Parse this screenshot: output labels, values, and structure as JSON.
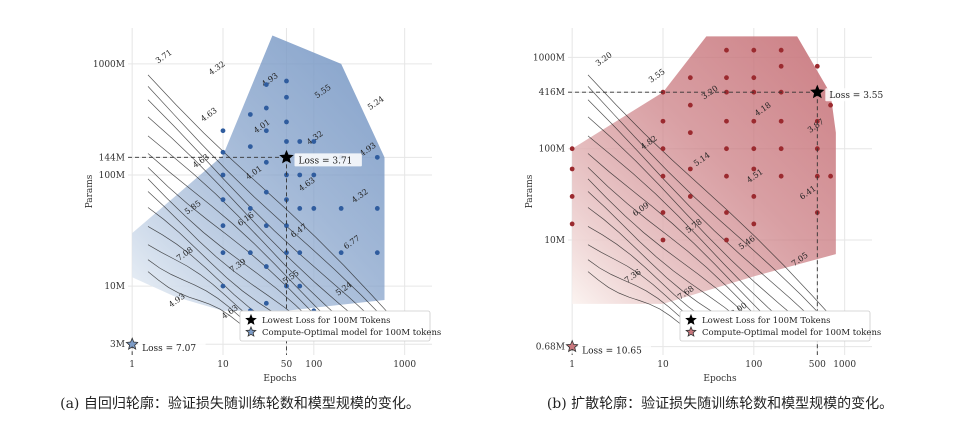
{
  "chart_data": [
    {
      "type": "contour",
      "caption": "(a) 自回归轮廓：验证损失随训练轮数和模型规模的变化。",
      "xlabel": "Epochs",
      "ylabel": "Params",
      "x_scale": "log",
      "y_scale": "log",
      "xlim": [
        0.9,
        2000
      ],
      "ylim_millions": [
        2.4,
        2100
      ],
      "x_ticks": [
        "1",
        "10",
        "50",
        "100",
        "1000"
      ],
      "x_tick_values": [
        1,
        10,
        50,
        100,
        1000
      ],
      "y_ticks": [
        "3M",
        "10M",
        "100M",
        "144M",
        "1000M"
      ],
      "y_tick_values": [
        3,
        10,
        100,
        144,
        1000
      ],
      "contour_labels": [
        "3.71",
        "4.32",
        "4.93",
        "5.55",
        "5.24",
        "4.63",
        "4.01",
        "4.32",
        "4.93",
        "4.63",
        "4.01",
        "4.63",
        "4.32",
        "5.85",
        "6.16",
        "6.47",
        "6.77",
        "7.08",
        "7.39",
        "5.55",
        "5.24",
        "4.93",
        "4.63"
      ],
      "region_polygon": [
        [
          1,
          30
        ],
        [
          10,
          150
        ],
        [
          35,
          1800
        ],
        [
          200,
          1000
        ],
        [
          600,
          144
        ],
        [
          600,
          7.5
        ],
        [
          50,
          6
        ],
        [
          10,
          6
        ],
        [
          3,
          8
        ],
        [
          1,
          12
        ]
      ],
      "points": [
        {
          "x": 10,
          "y": 10
        },
        {
          "x": 10,
          "y": 20
        },
        {
          "x": 10,
          "y": 35
        },
        {
          "x": 10,
          "y": 60
        },
        {
          "x": 10,
          "y": 100
        },
        {
          "x": 10,
          "y": 160
        },
        {
          "x": 10,
          "y": 250
        },
        {
          "x": 20,
          "y": 6
        },
        {
          "x": 20,
          "y": 20
        },
        {
          "x": 20,
          "y": 50
        },
        {
          "x": 20,
          "y": 180
        },
        {
          "x": 20,
          "y": 350
        },
        {
          "x": 30,
          "y": 7
        },
        {
          "x": 30,
          "y": 15
        },
        {
          "x": 30,
          "y": 35
        },
        {
          "x": 30,
          "y": 70
        },
        {
          "x": 30,
          "y": 130
        },
        {
          "x": 30,
          "y": 250
        },
        {
          "x": 30,
          "y": 400
        },
        {
          "x": 30,
          "y": 650
        },
        {
          "x": 50,
          "y": 10
        },
        {
          "x": 50,
          "y": 20
        },
        {
          "x": 50,
          "y": 35
        },
        {
          "x": 50,
          "y": 60
        },
        {
          "x": 50,
          "y": 100
        },
        {
          "x": 50,
          "y": 200
        },
        {
          "x": 50,
          "y": 300
        },
        {
          "x": 50,
          "y": 500
        },
        {
          "x": 50,
          "y": 700
        },
        {
          "x": 70,
          "y": 10
        },
        {
          "x": 70,
          "y": 20
        },
        {
          "x": 70,
          "y": 50
        },
        {
          "x": 70,
          "y": 100
        },
        {
          "x": 70,
          "y": 200
        },
        {
          "x": 100,
          "y": 6
        },
        {
          "x": 100,
          "y": 50
        },
        {
          "x": 100,
          "y": 100
        },
        {
          "x": 100,
          "y": 200
        },
        {
          "x": 200,
          "y": 20
        },
        {
          "x": 200,
          "y": 50
        },
        {
          "x": 200,
          "y": 144
        },
        {
          "x": 500,
          "y": 50
        },
        {
          "x": 500,
          "y": 144
        },
        {
          "x": 500,
          "y": 20
        }
      ],
      "lowest_loss": {
        "x": 50,
        "y": 144,
        "label": "Loss = 3.71"
      },
      "compute_optimal": {
        "x": 1,
        "y": 3,
        "label": "Loss = 7.07"
      },
      "legend": [
        "Lowest Loss for 100M Tokens",
        "Compute-Optimal model for 100M tokens"
      ],
      "colors": {
        "fill_low": "#eef3f8",
        "fill_high": "#7d9cc7",
        "point": "#2f5c9e",
        "contour": "#1a1a1a"
      }
    },
    {
      "type": "contour",
      "caption": "(b) 扩散轮廓：验证损失随训练轮数和模型规模的变化。",
      "xlabel": "Epochs",
      "ylabel": "Params",
      "x_scale": "log",
      "y_scale": "log",
      "xlim": [
        0.9,
        2000
      ],
      "ylim_millions": [
        0.55,
        2100
      ],
      "x_ticks": [
        "1",
        "10",
        "100",
        "500",
        "1000"
      ],
      "x_tick_values": [
        1,
        10,
        100,
        500,
        1000
      ],
      "y_ticks": [
        "0.68M",
        "10M",
        "100M",
        "416M",
        "1000M"
      ],
      "y_tick_values": [
        0.68,
        10,
        100,
        416,
        1000
      ],
      "contour_labels": [
        "3.20",
        "3.55",
        "3.20",
        "4.18",
        "3.87",
        "4.82",
        "5.14",
        "4.51",
        "6.41",
        "6.09",
        "5.78",
        "5.46",
        "7.05",
        "7.36",
        "7.68",
        "8.00"
      ],
      "region_polygon": [
        [
          1,
          100
        ],
        [
          10,
          416
        ],
        [
          30,
          1700
        ],
        [
          300,
          1700
        ],
        [
          700,
          400
        ],
        [
          800,
          150
        ],
        [
          800,
          7
        ],
        [
          100,
          4
        ],
        [
          10,
          2
        ],
        [
          1,
          2
        ]
      ],
      "points": [
        {
          "x": 1,
          "y": 100
        },
        {
          "x": 1,
          "y": 60
        },
        {
          "x": 1,
          "y": 30
        },
        {
          "x": 1,
          "y": 15
        },
        {
          "x": 10,
          "y": 416
        },
        {
          "x": 10,
          "y": 200
        },
        {
          "x": 10,
          "y": 100
        },
        {
          "x": 10,
          "y": 50
        },
        {
          "x": 10,
          "y": 20
        },
        {
          "x": 10,
          "y": 10
        },
        {
          "x": 20,
          "y": 600
        },
        {
          "x": 20,
          "y": 300
        },
        {
          "x": 20,
          "y": 150
        },
        {
          "x": 20,
          "y": 60
        },
        {
          "x": 20,
          "y": 30
        },
        {
          "x": 50,
          "y": 1200
        },
        {
          "x": 50,
          "y": 600
        },
        {
          "x": 50,
          "y": 416
        },
        {
          "x": 50,
          "y": 200
        },
        {
          "x": 50,
          "y": 100
        },
        {
          "x": 50,
          "y": 50
        },
        {
          "x": 50,
          "y": 20
        },
        {
          "x": 50,
          "y": 10
        },
        {
          "x": 100,
          "y": 1200
        },
        {
          "x": 100,
          "y": 600
        },
        {
          "x": 100,
          "y": 416
        },
        {
          "x": 100,
          "y": 200
        },
        {
          "x": 100,
          "y": 100
        },
        {
          "x": 100,
          "y": 60
        },
        {
          "x": 100,
          "y": 30
        },
        {
          "x": 100,
          "y": 15
        },
        {
          "x": 200,
          "y": 1200
        },
        {
          "x": 200,
          "y": 800
        },
        {
          "x": 200,
          "y": 416
        },
        {
          "x": 200,
          "y": 200
        },
        {
          "x": 200,
          "y": 100
        },
        {
          "x": 200,
          "y": 50
        },
        {
          "x": 500,
          "y": 800
        },
        {
          "x": 500,
          "y": 416
        },
        {
          "x": 500,
          "y": 200
        },
        {
          "x": 500,
          "y": 100
        },
        {
          "x": 500,
          "y": 50
        },
        {
          "x": 500,
          "y": 20
        },
        {
          "x": 700,
          "y": 300
        },
        {
          "x": 700,
          "y": 50
        }
      ],
      "lowest_loss": {
        "x": 500,
        "y": 416,
        "label": "Loss = 3.55"
      },
      "compute_optimal": {
        "x": 1,
        "y": 0.68,
        "label": "Loss = 10.65"
      },
      "legend": [
        "Lowest Loss for 100M Tokens",
        "Compute-Optimal model for 100M tokens"
      ],
      "colors": {
        "fill_low": "#fbf3f0",
        "fill_high": "#c9787e",
        "point": "#9b2a2f",
        "contour": "#1a1a1a"
      }
    }
  ]
}
